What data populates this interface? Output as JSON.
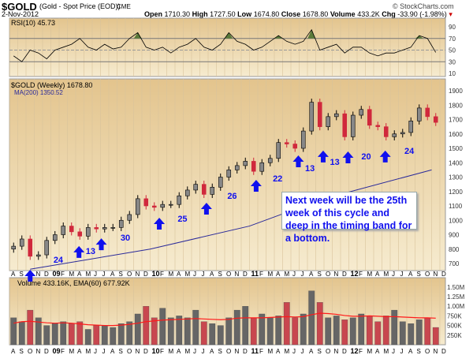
{
  "header": {
    "symbol": "$GOLD",
    "name": "(Gold - Spot Price (EOD))",
    "exchange": "CME",
    "date": "2-Nov-2012",
    "brand": "© StockCharts.com",
    "open_label": "Open",
    "open": "1710.30",
    "high_label": "High",
    "high": "1727.50",
    "low_label": "Low",
    "low": "1674.80",
    "close_label": "Close",
    "close": "1678.80",
    "volume_label": "Volume",
    "volume": "433.2K",
    "chg_label": "Chg",
    "chg": "-33.90 (-1.98%)"
  },
  "colors": {
    "up": "#000000",
    "down": "#d0283c",
    "ma": "#2a2a9a",
    "rsi_fill": "#5a7a3a",
    "vol_down": "#c8474f",
    "vol_up": "#666666",
    "ema": "#ff1a1a",
    "annot": "#1010ee"
  },
  "chart_data": [
    {
      "type": "line",
      "title": "RSI(10) 45.73",
      "ylim": [
        0,
        100
      ],
      "yticks": [
        "90",
        "70",
        "50",
        "30",
        "10"
      ],
      "overbought": 70,
      "oversold": 30,
      "values": [
        40,
        30,
        50,
        45,
        35,
        50,
        55,
        60,
        70,
        55,
        50,
        60,
        52,
        55,
        70,
        80,
        55,
        50,
        55,
        45,
        55,
        60,
        70,
        55,
        50,
        60,
        80,
        65,
        60,
        50,
        55,
        65,
        75,
        65,
        60,
        65,
        85,
        50,
        55,
        60,
        45,
        55,
        55,
        45,
        40,
        45,
        45,
        50,
        55,
        75,
        70,
        46
      ]
    },
    {
      "type": "candlestick",
      "title": "$GOLD (Weekly) 1678.80",
      "ma_label": "MA(200) 1350.52",
      "ylim": [
        650,
        1950
      ],
      "yticks": [
        "1900",
        "1800",
        "1700",
        "1600",
        "1500",
        "1400",
        "1300",
        "1200",
        "1100",
        "1000",
        "900",
        "800",
        "700"
      ],
      "x_start": "Aug 2008",
      "closes": [
        820,
        870,
        750,
        760,
        860,
        900,
        960,
        920,
        890,
        950,
        940,
        950,
        950,
        1000,
        1040,
        1150,
        1100,
        1090,
        1110,
        1110,
        1170,
        1210,
        1250,
        1180,
        1230,
        1300,
        1350,
        1380,
        1410,
        1340,
        1400,
        1430,
        1540,
        1530,
        1500,
        1620,
        1820,
        1650,
        1720,
        1740,
        1580,
        1730,
        1770,
        1660,
        1650,
        1580,
        1600,
        1610,
        1690,
        1780,
        1720,
        1680
      ],
      "ma200": [
        [
          2.5,
          660
        ],
        [
          17,
          800
        ],
        [
          29,
          960
        ],
        [
          38,
          1150
        ],
        [
          51,
          1350
        ]
      ],
      "annotations": [
        {
          "month": 2.5,
          "price": 656,
          "label": "24",
          "label_month": 5.9,
          "label_price": 733
        },
        {
          "month": 8.4,
          "price": 821,
          "label": "13",
          "label_month": 9.8,
          "label_price": 793
        },
        {
          "month": 11.1,
          "price": 875,
          "label": "30",
          "label_month": 14,
          "label_price": 886
        },
        {
          "month": 18.1,
          "price": 1018,
          "label": "25",
          "label_month": 20.9,
          "label_price": 1018
        },
        {
          "month": 23.8,
          "price": 1122,
          "label": "26",
          "label_month": 26.9,
          "label_price": 1177
        },
        {
          "month": 29.8,
          "price": 1281,
          "label": "22",
          "label_month": 32.4,
          "label_price": 1297
        },
        {
          "month": 34.9,
          "price": 1451,
          "label": "13",
          "label_month": 36.3,
          "label_price": 1368
        },
        {
          "month": 37.9,
          "price": 1484,
          "label": "13",
          "label_month": 39.3,
          "label_price": 1412
        },
        {
          "month": 40.9,
          "price": 1478,
          "label": "20",
          "label_month": 43.1,
          "label_price": 1451
        },
        {
          "month": 45.4,
          "price": 1484,
          "label": "24",
          "label_month": 48.3,
          "label_price": 1489
        }
      ],
      "note": "Next week will be the 25th week of this cycle and deep in the timing band for a bottom."
    },
    {
      "type": "bar",
      "title": "Volume 433.16K, EMA(60) 677.92K",
      "ylim": [
        0,
        1700
      ],
      "yticks": [
        "1.50M",
        "1.25M",
        "1.00M",
        "750K",
        "500K",
        "250K"
      ],
      "values": [
        700,
        600,
        900,
        700,
        500,
        550,
        600,
        550,
        600,
        400,
        500,
        500,
        450,
        550,
        600,
        800,
        1000,
        700,
        950,
        700,
        750,
        700,
        900,
        600,
        550,
        500,
        700,
        900,
        1000,
        700,
        800,
        700,
        750,
        1100,
        700,
        800,
        1400,
        1100,
        700,
        750,
        650,
        700,
        800,
        750,
        600,
        750,
        900,
        600,
        550,
        650,
        700,
        450
      ],
      "ema": [
        560,
        600,
        610,
        590,
        570,
        560,
        570,
        560,
        540,
        520,
        510,
        500,
        500,
        510,
        530,
        560,
        600,
        620,
        640,
        650,
        660,
        670,
        680,
        670,
        660,
        650,
        660,
        690,
        700,
        700,
        700,
        710,
        720,
        730,
        720,
        730,
        780,
        820,
        810,
        790,
        760,
        740,
        740,
        750,
        740,
        730,
        730,
        720,
        710,
        700,
        700,
        690
      ]
    }
  ],
  "months": [
    "A",
    "S",
    "O",
    "N",
    "D",
    "09",
    "F",
    "M",
    "A",
    "M",
    "J",
    "J",
    "A",
    "S",
    "O",
    "N",
    "D",
    "10",
    "F",
    "M",
    "A",
    "M",
    "J",
    "J",
    "A",
    "S",
    "O",
    "N",
    "D",
    "11",
    "F",
    "M",
    "A",
    "M",
    "J",
    "J",
    "A",
    "S",
    "O",
    "N",
    "D",
    "12",
    "F",
    "M",
    "A",
    "M",
    "J",
    "J",
    "A",
    "S",
    "O",
    "N",
    "D"
  ]
}
